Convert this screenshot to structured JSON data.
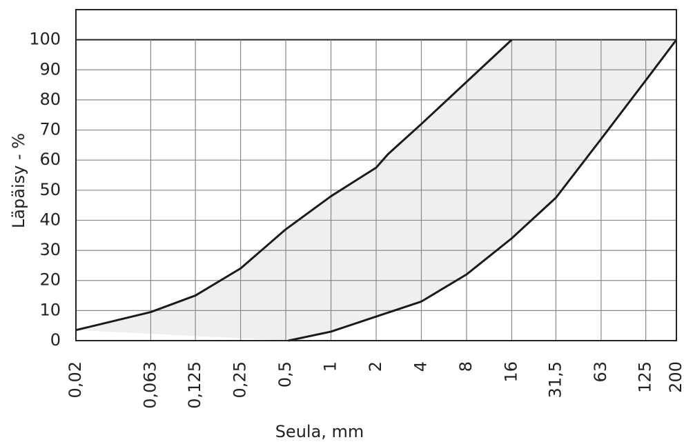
{
  "chart_data": {
    "type": "line",
    "xlabel": "Seula, mm",
    "ylabel": "Läpäisy - %",
    "xscale": "log",
    "grid": true,
    "xlim": [
      0.02,
      200
    ],
    "ylim": [
      0,
      110
    ],
    "xticks": [
      {
        "value": 0.02,
        "label": "0,02"
      },
      {
        "value": 0.063,
        "label": "0,063"
      },
      {
        "value": 0.125,
        "label": "0,125"
      },
      {
        "value": 0.25,
        "label": "0,25"
      },
      {
        "value": 0.5,
        "label": "0,5"
      },
      1,
      2,
      4,
      8,
      16,
      {
        "value": 31.5,
        "label": "31,5"
      },
      63,
      125,
      200
    ],
    "yticks": [
      0,
      10,
      20,
      30,
      40,
      50,
      60,
      70,
      80,
      90,
      100
    ],
    "fill_color": "#eef0f0",
    "series": [
      {
        "color": "#1a1a1a",
        "x": [
          0.02,
          0.063,
          0.125,
          0.25,
          0.5,
          1,
          2,
          2.4,
          4,
          8,
          16
        ],
        "values": [
          3.5,
          9.5,
          15,
          24,
          37,
          48,
          57.5,
          62,
          72,
          86,
          100
        ]
      },
      {
        "color": "#1a1a1a",
        "x": [
          0.52,
          1,
          2,
          4,
          8,
          16,
          31.5,
          63,
          125,
          200
        ],
        "values": [
          0,
          3,
          8,
          13,
          22,
          34,
          47.5,
          67,
          86.5,
          100
        ]
      }
    ]
  }
}
